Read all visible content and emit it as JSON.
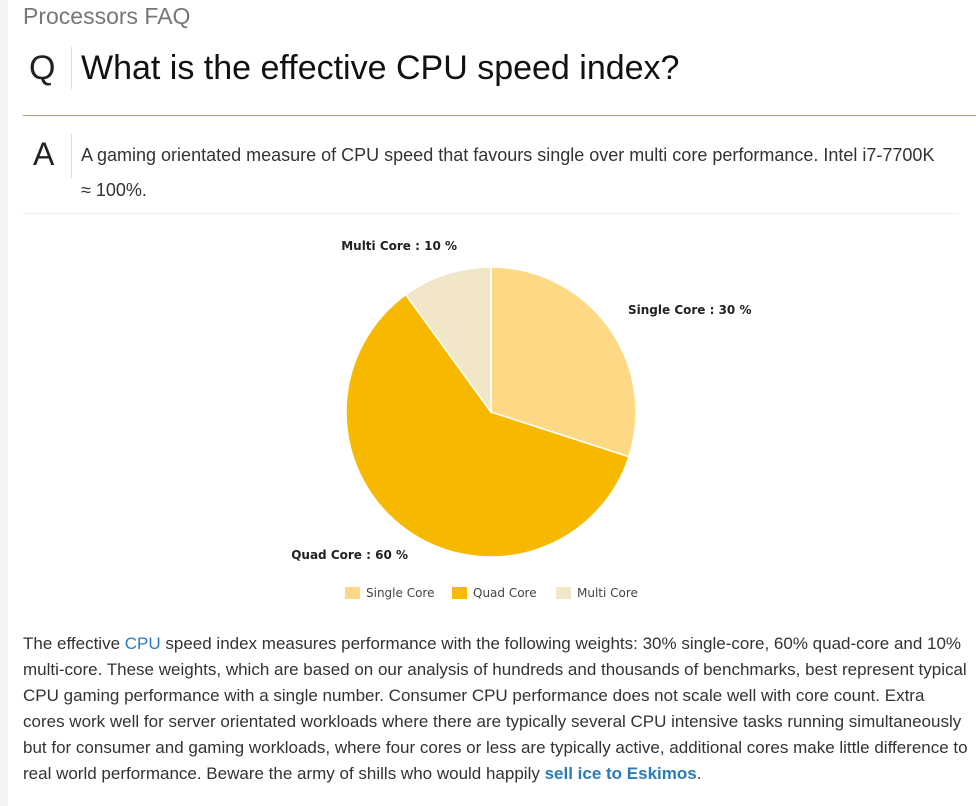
{
  "section_heading": "Processors FAQ",
  "question": {
    "letter": "Q",
    "text": "What is the effective CPU speed index?"
  },
  "answer": {
    "letter": "A",
    "text": "A gaming orientated measure of CPU speed that favours single over multi core performance. Intel i7-7700K ≈ 100%."
  },
  "colors": {
    "single": "#fdd985",
    "quad": "#f7b900",
    "multi": "#f1e6c8",
    "link": "#2b7bb9",
    "rule": "#c8a24a"
  },
  "chart_data": {
    "type": "pie",
    "title": "",
    "slices": [
      {
        "name": "Single Core",
        "value": 30,
        "label": "Single Core : 30 %"
      },
      {
        "name": "Quad Core",
        "value": 60,
        "label": "Quad Core : 60 %"
      },
      {
        "name": "Multi Core",
        "value": 10,
        "label": "Multi Core : 10 %"
      }
    ],
    "legend": [
      "Single Core",
      "Quad Core",
      "Multi Core"
    ],
    "legend_position": "bottom-center"
  },
  "body": {
    "part1": "The effective ",
    "cpu_link": "CPU",
    "part2": " speed index measures performance with the following weights: 30% single-core, 60% quad-core and 10% multi-core. These weights, which are based on our analysis of hundreds and thousands of benchmarks, best represent typical CPU gaming performance with a single number. Consumer CPU performance does not scale well with core count. Extra cores work well for server orientated workloads where there are typically several CPU intensive tasks running simultaneously but for consumer and gaming workloads, where four cores or less are typically active, additional cores make little difference to real world performance. Beware the army of shills who would happily ",
    "shill_link": "sell ice to Eskimos",
    "part3": "."
  }
}
